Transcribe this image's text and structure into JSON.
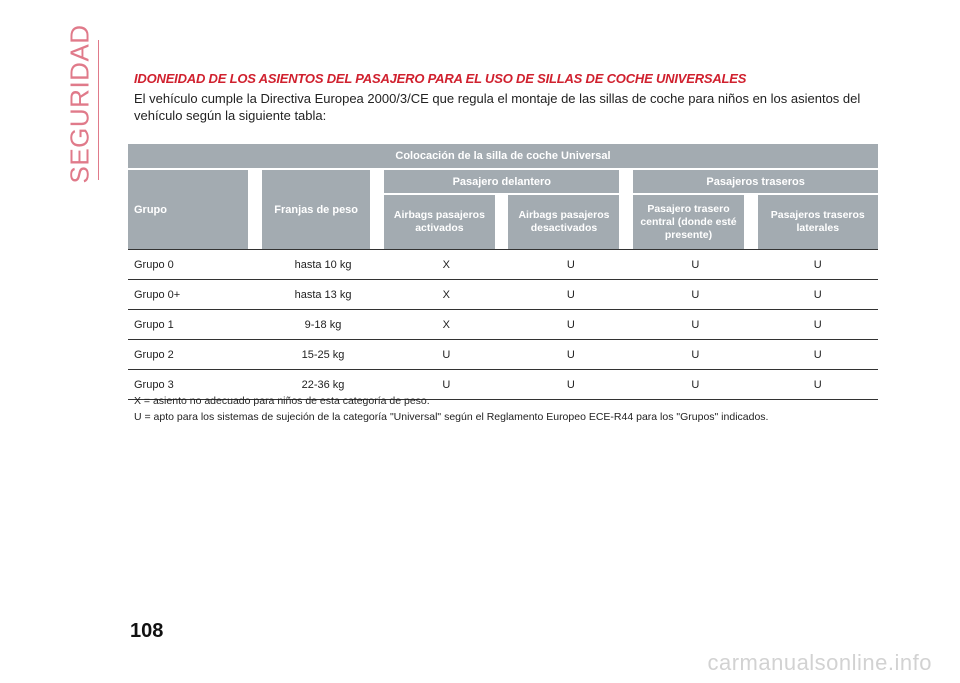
{
  "side_label": "SEGURIDAD",
  "section_title": "IDONEIDAD DE LOS ASIENTOS DEL PASAJERO PARA EL USO DE SILLAS DE COCHE UNIVERSALES",
  "intro": "El vehículo cumple la Directiva Europea 2000/3/CE que regula el montaje de las sillas de coche para niños en los asientos del vehículo según la siguiente tabla:",
  "table": {
    "title": "Colocación de la silla de coche Universal",
    "col_group": "Grupo",
    "col_weight": "Franjas de peso",
    "front_header": "Pasajero delantero",
    "rear_header": "Pasajeros traseros",
    "sub_airbag_on": "Airbags pasajeros activados",
    "sub_airbag_off": "Airbags pasajeros desactivados",
    "sub_rear_center": "Pasajero trasero central (donde esté presente)",
    "sub_rear_lateral": "Pasajeros traseros laterales",
    "rows": [
      {
        "group": "Grupo 0",
        "weight": "hasta 10 kg",
        "on": "X",
        "off": "U",
        "center": "U",
        "lateral": "U"
      },
      {
        "group": "Grupo 0+",
        "weight": "hasta 13 kg",
        "on": "X",
        "off": "U",
        "center": "U",
        "lateral": "U"
      },
      {
        "group": "Grupo 1",
        "weight": "9-18 kg",
        "on": "X",
        "off": "U",
        "center": "U",
        "lateral": "U"
      },
      {
        "group": "Grupo 2",
        "weight": "15-25 kg",
        "on": "U",
        "off": "U",
        "center": "U",
        "lateral": "U"
      },
      {
        "group": "Grupo 3",
        "weight": "22-36 kg",
        "on": "U",
        "off": "U",
        "center": "U",
        "lateral": "U"
      }
    ]
  },
  "legend": [
    "X = asiento no adecuado para niños de esta categoría de peso.",
    "U = apto para los sistemas de sujeción de la categoría \"Universal\" según el Reglamento Europeo ECE-R44 para los \"Grupos\" indicados."
  ],
  "page_number": "108",
  "watermark": "carmanualsonline.info",
  "colors": {
    "accent_red": "#d0202e",
    "header_grey": "#a3abb1",
    "side_pink": "#e07a8a"
  }
}
